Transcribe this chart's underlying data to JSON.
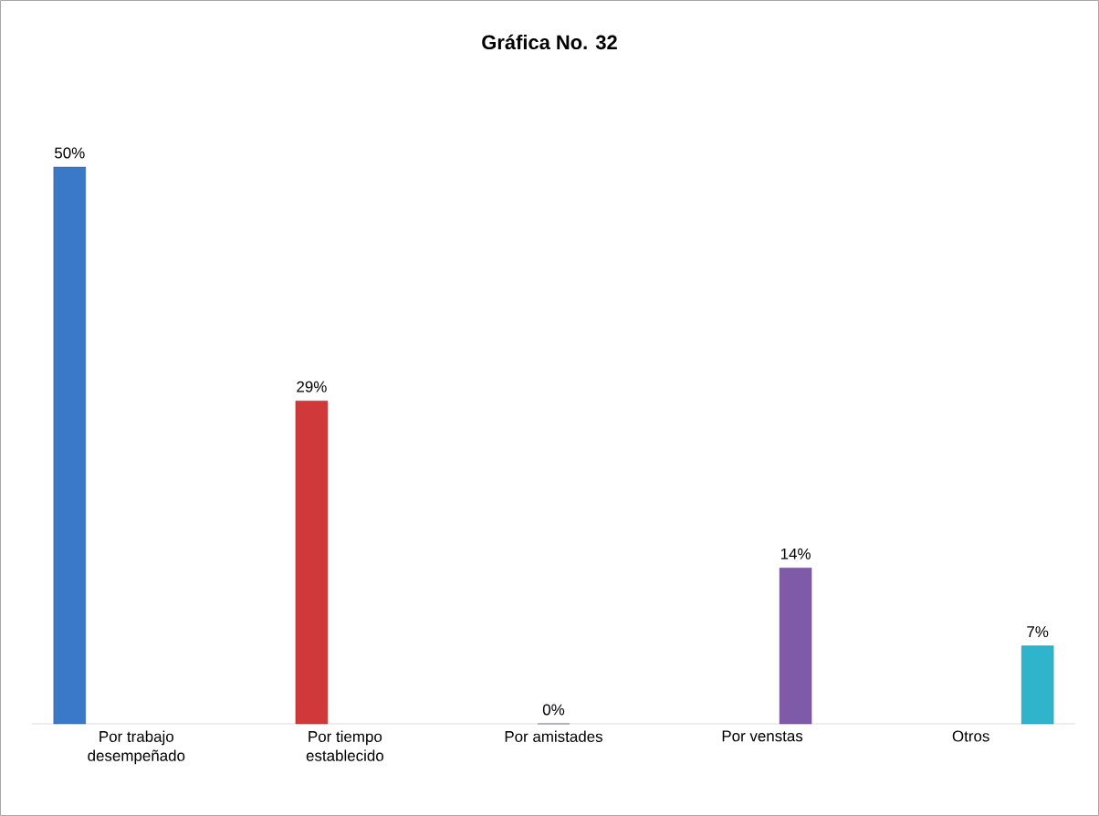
{
  "chart_data": {
    "type": "bar",
    "title": "Gráfica No. 32",
    "categories": [
      "Por trabajo desempeñado",
      "Por tiempo establecido",
      "Por amistades",
      "Por venstas",
      "Otros"
    ],
    "values": [
      50,
      29,
      0,
      14,
      7
    ],
    "colors": [
      "#3a78c8",
      "#d0393a",
      "#7f5aa8",
      "#7f5aa8",
      "#2fb4cc"
    ],
    "value_labels": [
      "50%",
      "29%",
      "0%",
      "14%",
      "7%"
    ]
  }
}
